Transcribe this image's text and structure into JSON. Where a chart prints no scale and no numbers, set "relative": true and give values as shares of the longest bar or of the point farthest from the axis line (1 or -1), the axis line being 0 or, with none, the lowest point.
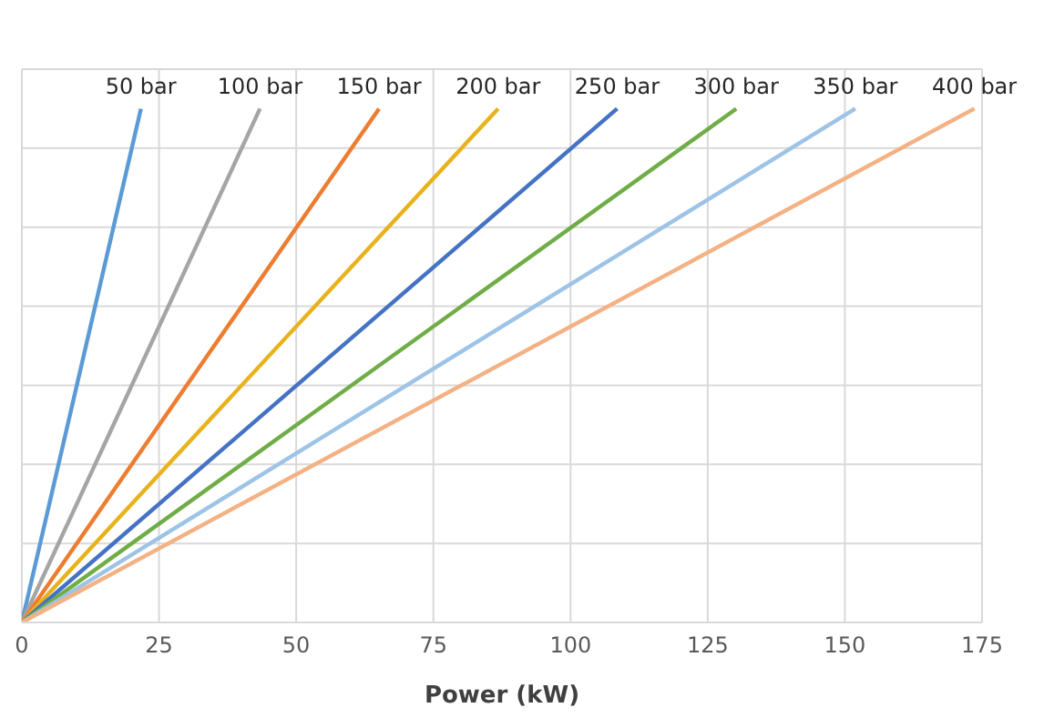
{
  "chart_data": {
    "type": "line",
    "relative": true,
    "xlabel": "Power (kW)",
    "xlim": [
      0,
      175
    ],
    "xticks": [
      0,
      25,
      50,
      75,
      100,
      125,
      150,
      175
    ],
    "grid": true,
    "legend": false,
    "marker": "none",
    "line_style": "solid",
    "series": [
      {
        "name": "50 bar",
        "color": "#5b9bd5",
        "x": [
          0,
          21.7
        ],
        "values": [
          0,
          1
        ]
      },
      {
        "name": "100 bar",
        "color": "#a5a5a5",
        "x": [
          0,
          43.4
        ],
        "values": [
          0,
          1
        ]
      },
      {
        "name": "150 bar",
        "color": "#ed7d31",
        "x": [
          0,
          65.1
        ],
        "values": [
          0,
          1
        ]
      },
      {
        "name": "200 bar",
        "color": "#e8b21c",
        "x": [
          0,
          86.8
        ],
        "values": [
          0,
          1
        ]
      },
      {
        "name": "250 bar",
        "color": "#4472c4",
        "x": [
          0,
          108.5
        ],
        "values": [
          0,
          1
        ]
      },
      {
        "name": "300 bar",
        "color": "#70ad47",
        "x": [
          0,
          130.2
        ],
        "values": [
          0,
          1
        ]
      },
      {
        "name": "350 bar",
        "color": "#9dc3e6",
        "x": [
          0,
          151.9
        ],
        "values": [
          0,
          1
        ]
      },
      {
        "name": "400 bar",
        "color": "#f4b183",
        "x": [
          0,
          173.6
        ],
        "values": [
          0,
          1
        ]
      }
    ]
  }
}
